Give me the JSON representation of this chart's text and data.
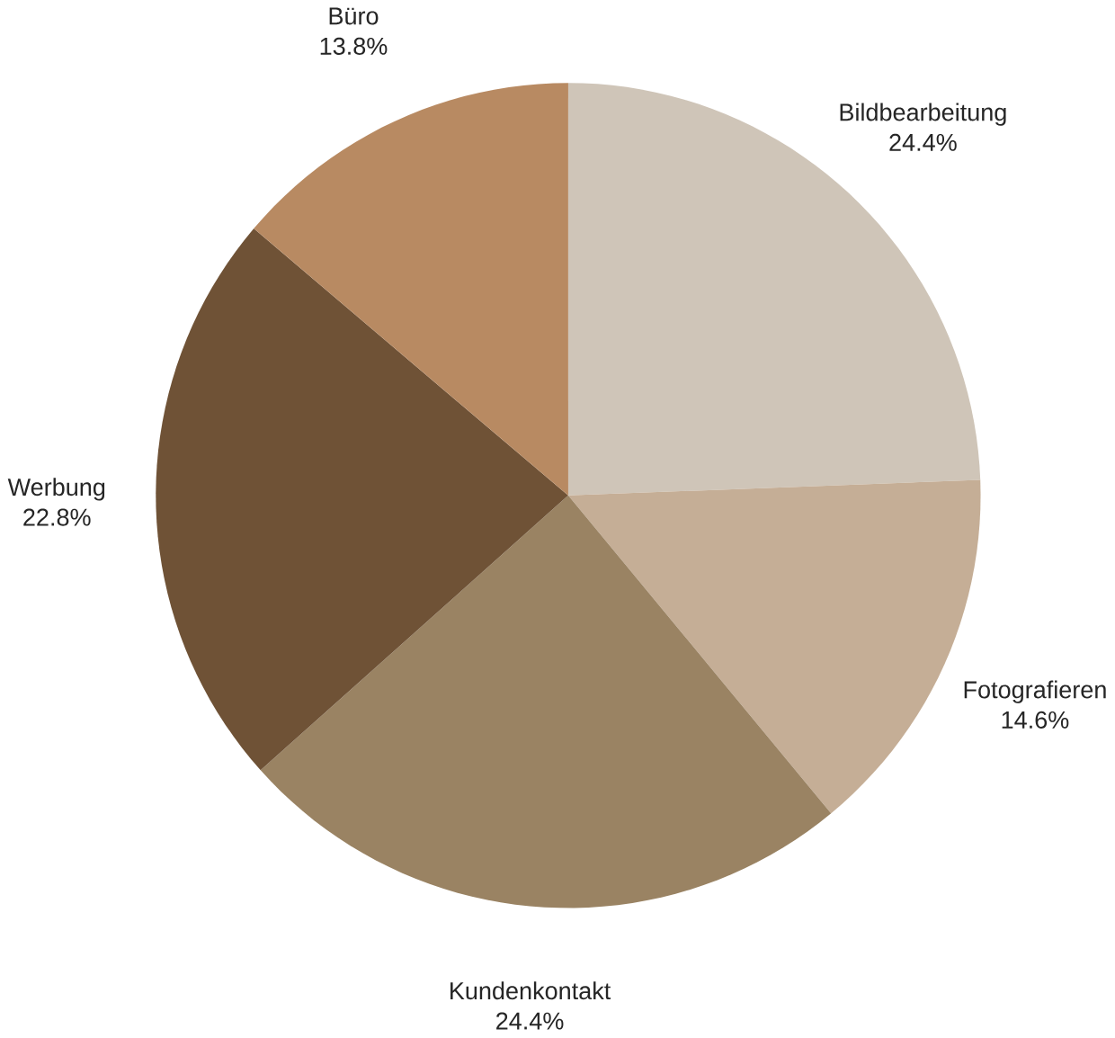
{
  "chart_data": {
    "type": "pie",
    "categories": [
      "Bildbearbeitung",
      "Fotografieren",
      "Kundenkontakt",
      "Werbung",
      "Büro"
    ],
    "values": [
      24.4,
      14.6,
      24.4,
      22.8,
      13.8
    ],
    "value_labels": [
      "24.4%",
      "14.6%",
      "24.4%",
      "22.8%",
      "13.8%"
    ],
    "colors": [
      "#cfc5b8",
      "#c5ae96",
      "#9a8363",
      "#6f5236",
      "#b88a62"
    ]
  }
}
